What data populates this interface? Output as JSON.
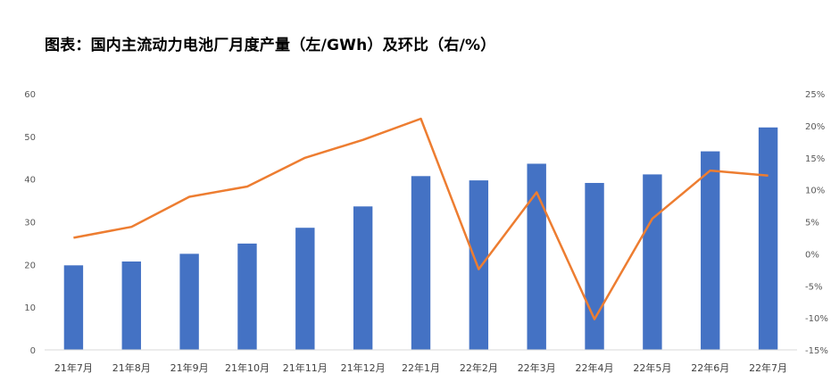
{
  "title": "图表：国内主流动力电池厂月度产量（左/GWh）及环比（右/%）",
  "colors": {
    "bars": "#4472C4",
    "line": "#ED7D31",
    "axis": "#D9D9D9",
    "text": "#595959"
  },
  "chart_data": {
    "type": "bar+line",
    "categories": [
      "21年7月",
      "21年8月",
      "21年9月",
      "21年10月",
      "21年11月",
      "21年12月",
      "22年1月",
      "22年2月",
      "22年3月",
      "22年4月",
      "22年5月",
      "22年6月",
      "22年7月"
    ],
    "series": [
      {
        "type": "bar",
        "axis": "left",
        "values": [
          19.8,
          20.7,
          22.5,
          24.9,
          28.6,
          33.6,
          40.7,
          39.7,
          43.6,
          39.1,
          41.1,
          46.5,
          52.1
        ]
      },
      {
        "type": "line",
        "axis": "right",
        "values": [
          2.5,
          4.2,
          8.9,
          10.5,
          15.0,
          17.8,
          21.1,
          -2.4,
          9.6,
          -10.2,
          5.5,
          13.0,
          12.2
        ]
      }
    ],
    "ylim_left": [
      0,
      60
    ],
    "left_ticks": [
      "0",
      "10",
      "20",
      "30",
      "40",
      "50",
      "60"
    ],
    "ylim_right": [
      -15,
      25
    ],
    "right_ticks": [
      "-15%",
      "-10%",
      "-5%",
      "0%",
      "5%",
      "10%",
      "15%",
      "20%",
      "25%"
    ],
    "legend": "none",
    "grid": false
  }
}
